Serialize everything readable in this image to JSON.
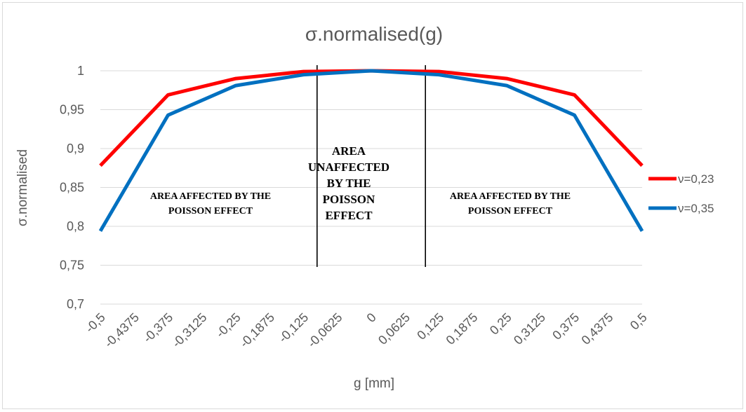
{
  "chart_data": {
    "type": "line",
    "title": "σ.normalised(g)",
    "xlabel": "g [mm]",
    "ylabel": "σ.normalised",
    "categories": [
      "-0,5",
      "-0,4375",
      "-0,375",
      "-0,3125",
      "-0,25",
      "-0,1875",
      "-0,125",
      "-0,0625",
      "0",
      "0,0625",
      "0,125",
      "0,1875",
      "0,25",
      "0,3125",
      "0,375",
      "0,4375",
      "0,5"
    ],
    "yticks": [
      "0,7",
      "0,75",
      "0,8",
      "0,85",
      "0,9",
      "0,95",
      "1"
    ],
    "ylim": [
      0.7,
      1.0
    ],
    "grid": true,
    "legend_position": "right",
    "series": [
      {
        "name": "ν=0,23",
        "color": "#ff0000",
        "points": [
          [
            -0.5,
            0.878
          ],
          [
            -0.375,
            0.969
          ],
          [
            -0.25,
            0.99
          ],
          [
            -0.125,
            0.999
          ],
          [
            0,
            1.0
          ],
          [
            0.125,
            0.999
          ],
          [
            0.25,
            0.99
          ],
          [
            0.375,
            0.969
          ],
          [
            0.5,
            0.878
          ]
        ]
      },
      {
        "name": "ν=0,35",
        "color": "#0070c0",
        "points": [
          [
            -0.5,
            0.794
          ],
          [
            -0.375,
            0.943
          ],
          [
            -0.25,
            0.981
          ],
          [
            -0.125,
            0.995
          ],
          [
            0,
            1.0
          ],
          [
            0.125,
            0.995
          ],
          [
            0.25,
            0.981
          ],
          [
            0.375,
            0.943
          ],
          [
            0.5,
            0.794
          ]
        ]
      }
    ],
    "divider_lines_x": [
      -0.1,
      0.1
    ],
    "annotations": {
      "left": [
        "AREA AFFECTED BY THE",
        "POISSON EFFECT"
      ],
      "center": [
        "AREA",
        "UNAFFECTED",
        "BY THE",
        "POISSON",
        "EFFECT"
      ],
      "right": [
        "AREA AFFECTED BY THE",
        "POISSON EFFECT"
      ]
    }
  }
}
